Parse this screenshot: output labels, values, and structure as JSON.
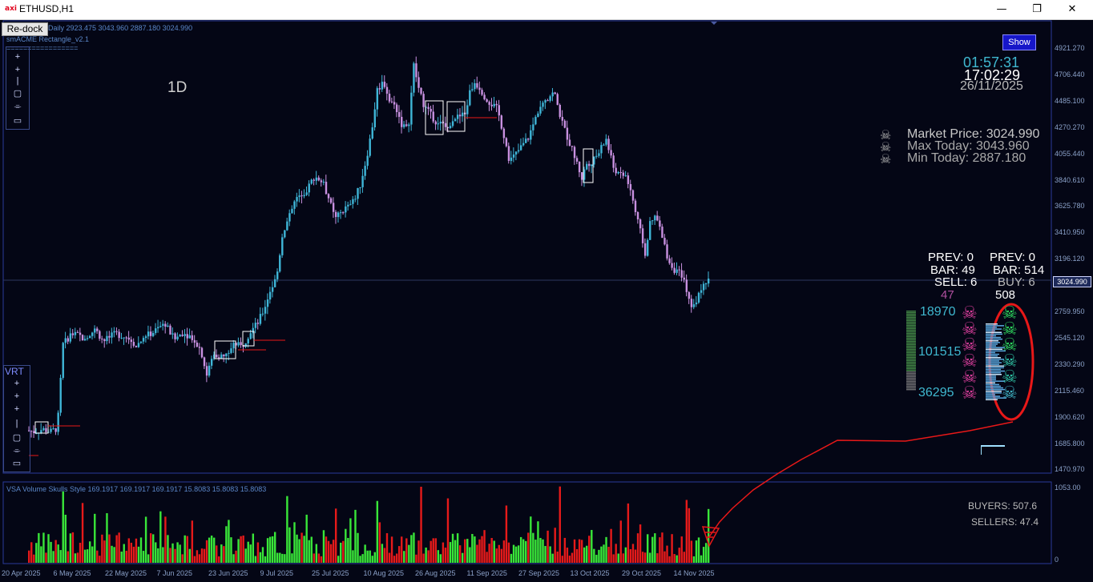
{
  "window": {
    "logo": "axi",
    "title": "ETHUSD,H1",
    "minimize": "—",
    "restore": "❐",
    "close": "✕"
  },
  "chart_header": {
    "ohlc_line": "Daily  2923.475 3043.960 2887.180 3024.990",
    "indicator": "smACME Rectangle_v2.1",
    "separator": "================="
  },
  "redock_label": "Re-dock",
  "show_label": "Show",
  "timeframe_label": "1D",
  "clock": {
    "countdown": "01:57:31",
    "time": "17:02:29",
    "date": "26/11/2025"
  },
  "market_info": {
    "market_price": "Market Price: 3024.990",
    "max_today": "Max Today: 3043.960",
    "min_today": "Min Today: 2887.180"
  },
  "sell_panel": {
    "prev": "PREV: 0",
    "bar": "BAR: 49",
    "sell": "SELL: 6",
    "count": "47",
    "v1": "18970",
    "v2": "101515",
    "v3": "36295"
  },
  "buy_panel": {
    "prev": "PREV: 0",
    "bar": "BAR: 514",
    "buy": "BUY: 6",
    "count": "508"
  },
  "vrt_label": "VRT",
  "volume_header": "VSA Volume Skulls Style 169.1917 169.1917 169.1917 15.8083 15.8083 15.8083",
  "buyers_label": "BUYERS: 507.6",
  "sellers_label": "SELLERS: 47.4",
  "current_price_label": "3024.990",
  "price_axis": [
    "4921.270",
    "4706.440",
    "4485.100",
    "4270.270",
    "4055.440",
    "3840.610",
    "3625.780",
    "3410.950",
    "3196.120",
    "2974.780",
    "2759.950",
    "2545.120",
    "2330.290",
    "2115.460",
    "1900.620",
    "1685.800",
    "1470.970"
  ],
  "volume_axis": [
    "1053.00",
    "0"
  ],
  "date_axis": [
    "20 Apr 2025",
    "6 May 2025",
    "22 May 2025",
    "7 Jun 2025",
    "23 Jun 2025",
    "9 Jul 2025",
    "25 Jul 2025",
    "10 Aug 2025",
    "26 Aug 2025",
    "11 Sep 2025",
    "27 Sep 2025",
    "13 Oct 2025",
    "29 Oct 2025",
    "14 Nov 2025"
  ],
  "colors": {
    "background": "#040615",
    "bull_candle": "#3fb6d8",
    "bear_candle": "#c890e0",
    "volume_up": "#39e639",
    "volume_down": "#e61a1a",
    "annotation": "#e81818",
    "skull_sell": "#e040a0",
    "skull_buy": "#30e060"
  },
  "chart_data": {
    "type": "candlestick",
    "symbol": "ETHUSD",
    "ylim": [
      1470.97,
      4921.27
    ],
    "x_range": [
      "20 Apr 2025",
      "26 Nov 2025"
    ],
    "price_path": [
      [
        0,
        1800
      ],
      [
        10,
        1790
      ],
      [
        20,
        1810
      ],
      [
        30,
        1790
      ],
      [
        38,
        1820
      ],
      [
        45,
        2500
      ],
      [
        55,
        2590
      ],
      [
        70,
        2560
      ],
      [
        85,
        2620
      ],
      [
        95,
        2530
      ],
      [
        110,
        2590
      ],
      [
        125,
        2560
      ],
      [
        135,
        2490
      ],
      [
        145,
        2560
      ],
      [
        160,
        2620
      ],
      [
        170,
        2680
      ],
      [
        182,
        2540
      ],
      [
        192,
        2600
      ],
      [
        205,
        2560
      ],
      [
        215,
        2450
      ],
      [
        222,
        2250
      ],
      [
        230,
        2420
      ],
      [
        245,
        2400
      ],
      [
        255,
        2510
      ],
      [
        265,
        2480
      ],
      [
        275,
        2600
      ],
      [
        285,
        2680
      ],
      [
        292,
        2780
      ],
      [
        300,
        2940
      ],
      [
        308,
        3050
      ],
      [
        315,
        3390
      ],
      [
        325,
        3600
      ],
      [
        335,
        3720
      ],
      [
        345,
        3760
      ],
      [
        355,
        3880
      ],
      [
        365,
        3820
      ],
      [
        372,
        3700
      ],
      [
        380,
        3520
      ],
      [
        390,
        3600
      ],
      [
        400,
        3640
      ],
      [
        410,
        3780
      ],
      [
        418,
        4000
      ],
      [
        425,
        4240
      ],
      [
        432,
        4580
      ],
      [
        440,
        4650
      ],
      [
        447,
        4490
      ],
      [
        455,
        4440
      ],
      [
        462,
        4300
      ],
      [
        470,
        4250
      ],
      [
        477,
        4780
      ],
      [
        484,
        4560
      ],
      [
        490,
        4450
      ],
      [
        497,
        4380
      ],
      [
        505,
        4320
      ],
      [
        512,
        4300
      ],
      [
        518,
        4260
      ],
      [
        525,
        4350
      ],
      [
        532,
        4360
      ],
      [
        540,
        4380
      ],
      [
        546,
        4560
      ],
      [
        552,
        4640
      ],
      [
        558,
        4600
      ],
      [
        565,
        4520
      ],
      [
        572,
        4470
      ],
      [
        580,
        4420
      ],
      [
        588,
        4210
      ],
      [
        595,
        4000
      ],
      [
        602,
        4050
      ],
      [
        610,
        4120
      ],
      [
        618,
        4190
      ],
      [
        626,
        4330
      ],
      [
        634,
        4490
      ],
      [
        642,
        4520
      ],
      [
        650,
        4560
      ],
      [
        656,
        4400
      ],
      [
        662,
        4270
      ],
      [
        668,
        4160
      ],
      [
        676,
        4020
      ],
      [
        684,
        3860
      ],
      [
        690,
        3980
      ],
      [
        698,
        4000
      ],
      [
        706,
        4080
      ],
      [
        714,
        4180
      ],
      [
        722,
        3960
      ],
      [
        730,
        3880
      ],
      [
        738,
        3880
      ],
      [
        745,
        3740
      ],
      [
        750,
        3580
      ],
      [
        756,
        3420
      ],
      [
        762,
        3250
      ],
      [
        768,
        3480
      ],
      [
        775,
        3550
      ],
      [
        782,
        3400
      ],
      [
        790,
        3200
      ],
      [
        797,
        3120
      ],
      [
        804,
        3080
      ],
      [
        812,
        2980
      ],
      [
        820,
        2780
      ],
      [
        826,
        2880
      ],
      [
        832,
        2960
      ],
      [
        838,
        3024.99
      ]
    ],
    "volume_ylim": [
      0,
      1053
    ],
    "buyers": 507.6,
    "sellers": 47.4
  }
}
